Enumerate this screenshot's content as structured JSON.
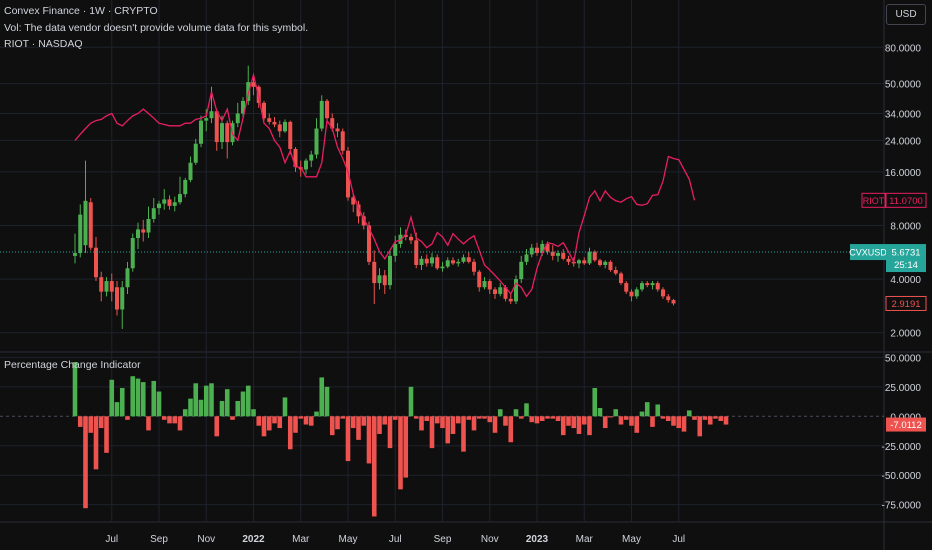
{
  "header": {
    "symbol_line": "Convex Finance · 1W · CRYPTO",
    "volume_note": "Vol: The data vendor doesn't provide volume data for this symbol.",
    "compare_line": "RIOT · NASDAQ",
    "currency_button": "USD"
  },
  "indicator": {
    "title": "Percentage Change Indicator"
  },
  "colors": {
    "up": "#4caf50",
    "down": "#ef5350",
    "compare_line": "#e91e63",
    "bg": "#0f0f0f",
    "grid": "#1e222d",
    "text": "#d1d4dc"
  },
  "chart_data": [
    {
      "type": "candlestick",
      "title": "Convex Finance · 1W · CRYPTO",
      "y_scale": "log",
      "ylim": [
        1.6,
        100
      ],
      "y_ticks": [
        2,
        4,
        8,
        16,
        24,
        34,
        50,
        80
      ],
      "y_tick_labels": [
        "2.0000",
        "4.0000",
        "8.0000",
        "16.0000",
        "24.0000",
        "34.0000",
        "50.0000",
        "80.0000"
      ],
      "x_tick_labels": [
        "Jul",
        "Sep",
        "Nov",
        "2022",
        "Mar",
        "May",
        "Jul",
        "Sep",
        "Nov",
        "2023",
        "Mar",
        "May",
        "Jul"
      ],
      "x_tick_index": [
        7,
        16,
        25,
        34,
        43,
        52,
        61,
        70,
        79,
        88,
        97,
        106,
        115
      ],
      "candles": [
        {
          "o": 5.4,
          "h": 7.2,
          "l": 4.9,
          "c": 5.6
        },
        {
          "o": 5.6,
          "h": 10.5,
          "l": 5.3,
          "c": 9.2
        },
        {
          "o": 6.2,
          "h": 18.5,
          "l": 5.6,
          "c": 11.0
        },
        {
          "o": 10.8,
          "h": 11.4,
          "l": 5.8,
          "c": 6.0
        },
        {
          "o": 6.0,
          "h": 6.9,
          "l": 3.9,
          "c": 4.1
        },
        {
          "o": 4.1,
          "h": 4.4,
          "l": 3.0,
          "c": 3.4
        },
        {
          "o": 3.4,
          "h": 4.1,
          "l": 3.2,
          "c": 3.9
        },
        {
          "o": 3.9,
          "h": 4.3,
          "l": 3.0,
          "c": 3.4
        },
        {
          "o": 3.6,
          "h": 3.9,
          "l": 2.5,
          "c": 2.7
        },
        {
          "o": 2.7,
          "h": 3.9,
          "l": 2.1,
          "c": 3.6
        },
        {
          "o": 3.6,
          "h": 5.0,
          "l": 3.3,
          "c": 4.6
        },
        {
          "o": 4.6,
          "h": 7.2,
          "l": 4.4,
          "c": 6.8
        },
        {
          "o": 6.8,
          "h": 8.3,
          "l": 5.9,
          "c": 7.6
        },
        {
          "o": 7.6,
          "h": 8.6,
          "l": 6.5,
          "c": 7.3
        },
        {
          "o": 7.3,
          "h": 10.2,
          "l": 6.8,
          "c": 8.7
        },
        {
          "o": 8.7,
          "h": 11.4,
          "l": 8.3,
          "c": 10.0
        },
        {
          "o": 10.0,
          "h": 11.0,
          "l": 9.2,
          "c": 10.6
        },
        {
          "o": 10.6,
          "h": 12.8,
          "l": 9.8,
          "c": 11.2
        },
        {
          "o": 11.2,
          "h": 11.8,
          "l": 9.8,
          "c": 10.3
        },
        {
          "o": 10.3,
          "h": 11.6,
          "l": 9.6,
          "c": 10.8
        },
        {
          "o": 10.8,
          "h": 15.0,
          "l": 10.5,
          "c": 12.0
        },
        {
          "o": 12.0,
          "h": 14.8,
          "l": 11.5,
          "c": 14.4
        },
        {
          "o": 14.4,
          "h": 19.5,
          "l": 14.0,
          "c": 18.0
        },
        {
          "o": 18.0,
          "h": 24.5,
          "l": 17.5,
          "c": 23.0
        },
        {
          "o": 23.0,
          "h": 33.0,
          "l": 22.0,
          "c": 31.0
        },
        {
          "o": 31.0,
          "h": 36.0,
          "l": 27.0,
          "c": 32.0
        },
        {
          "o": 32.0,
          "h": 48.0,
          "l": 30.0,
          "c": 35.0
        },
        {
          "o": 35.0,
          "h": 36.0,
          "l": 21.0,
          "c": 23.5
        },
        {
          "o": 23.5,
          "h": 33.0,
          "l": 21.5,
          "c": 30.0
        },
        {
          "o": 30.0,
          "h": 31.0,
          "l": 19.0,
          "c": 23.5
        },
        {
          "o": 23.5,
          "h": 31.0,
          "l": 22.5,
          "c": 30.0
        },
        {
          "o": 30.0,
          "h": 39.0,
          "l": 28.5,
          "c": 34.0
        },
        {
          "o": 34.0,
          "h": 42.0,
          "l": 32.0,
          "c": 40.0
        },
        {
          "o": 40.0,
          "h": 63.0,
          "l": 38.0,
          "c": 51.0
        },
        {
          "o": 51.0,
          "h": 56.0,
          "l": 43.0,
          "c": 48.0
        },
        {
          "o": 48.0,
          "h": 49.0,
          "l": 36.5,
          "c": 39.0
        },
        {
          "o": 39.0,
          "h": 40.0,
          "l": 31.0,
          "c": 32.0
        },
        {
          "o": 32.0,
          "h": 34.0,
          "l": 29.5,
          "c": 30.5
        },
        {
          "o": 30.5,
          "h": 32.5,
          "l": 28.5,
          "c": 29.5
        },
        {
          "o": 29.5,
          "h": 31.0,
          "l": 25.0,
          "c": 27.0
        },
        {
          "o": 27.0,
          "h": 31.5,
          "l": 26.5,
          "c": 30.5
        },
        {
          "o": 30.5,
          "h": 31.0,
          "l": 20.0,
          "c": 21.5
        },
        {
          "o": 21.5,
          "h": 22.0,
          "l": 16.0,
          "c": 17.0
        },
        {
          "o": 17.0,
          "h": 18.5,
          "l": 15.0,
          "c": 16.5
        },
        {
          "o": 16.5,
          "h": 19.0,
          "l": 15.5,
          "c": 18.5
        },
        {
          "o": 18.5,
          "h": 21.0,
          "l": 17.0,
          "c": 20.0
        },
        {
          "o": 20.0,
          "h": 32.0,
          "l": 19.0,
          "c": 28.0
        },
        {
          "o": 28.0,
          "h": 43.0,
          "l": 27.0,
          "c": 40.0
        },
        {
          "o": 40.0,
          "h": 41.0,
          "l": 30.0,
          "c": 32.0
        },
        {
          "o": 32.0,
          "h": 34.0,
          "l": 27.0,
          "c": 28.0
        },
        {
          "o": 28.0,
          "h": 30.0,
          "l": 25.0,
          "c": 27.0
        },
        {
          "o": 27.0,
          "h": 28.0,
          "l": 20.0,
          "c": 21.0
        },
        {
          "o": 21.0,
          "h": 22.0,
          "l": 11.0,
          "c": 11.5
        },
        {
          "o": 11.5,
          "h": 12.0,
          "l": 9.5,
          "c": 10.5
        },
        {
          "o": 10.5,
          "h": 11.0,
          "l": 8.2,
          "c": 9.0
        },
        {
          "o": 9.0,
          "h": 9.5,
          "l": 7.6,
          "c": 8.0
        },
        {
          "o": 8.0,
          "h": 8.4,
          "l": 4.8,
          "c": 5.0
        },
        {
          "o": 5.0,
          "h": 5.8,
          "l": 2.9,
          "c": 3.8
        },
        {
          "o": 3.8,
          "h": 4.6,
          "l": 3.5,
          "c": 4.2
        },
        {
          "o": 4.2,
          "h": 4.5,
          "l": 3.3,
          "c": 3.7
        },
        {
          "o": 3.7,
          "h": 5.8,
          "l": 3.5,
          "c": 5.4
        },
        {
          "o": 5.4,
          "h": 7.0,
          "l": 5.0,
          "c": 6.3
        },
        {
          "o": 6.3,
          "h": 7.8,
          "l": 6.0,
          "c": 7.1
        },
        {
          "o": 7.1,
          "h": 7.6,
          "l": 6.6,
          "c": 6.9
        },
        {
          "o": 6.9,
          "h": 7.2,
          "l": 6.3,
          "c": 6.6
        },
        {
          "o": 6.6,
          "h": 7.3,
          "l": 4.6,
          "c": 4.8
        },
        {
          "o": 4.8,
          "h": 5.4,
          "l": 4.5,
          "c": 5.2
        },
        {
          "o": 5.2,
          "h": 5.5,
          "l": 4.7,
          "c": 4.9
        },
        {
          "o": 4.9,
          "h": 5.6,
          "l": 4.7,
          "c": 5.3
        },
        {
          "o": 5.3,
          "h": 5.5,
          "l": 4.5,
          "c": 4.6
        },
        {
          "o": 4.6,
          "h": 5.0,
          "l": 4.4,
          "c": 4.7
        },
        {
          "o": 4.7,
          "h": 5.3,
          "l": 4.6,
          "c": 5.1
        },
        {
          "o": 5.1,
          "h": 5.3,
          "l": 4.8,
          "c": 4.9
        },
        {
          "o": 4.9,
          "h": 5.2,
          "l": 4.7,
          "c": 5.0
        },
        {
          "o": 5.0,
          "h": 5.5,
          "l": 4.9,
          "c": 5.3
        },
        {
          "o": 5.3,
          "h": 5.7,
          "l": 4.9,
          "c": 5.0
        },
        {
          "o": 5.0,
          "h": 5.2,
          "l": 4.2,
          "c": 4.4
        },
        {
          "o": 4.4,
          "h": 4.5,
          "l": 3.4,
          "c": 3.6
        },
        {
          "o": 3.6,
          "h": 4.1,
          "l": 3.5,
          "c": 3.9
        },
        {
          "o": 3.9,
          "h": 4.0,
          "l": 3.3,
          "c": 3.5
        },
        {
          "o": 3.5,
          "h": 3.6,
          "l": 3.1,
          "c": 3.3
        },
        {
          "o": 3.3,
          "h": 3.8,
          "l": 3.2,
          "c": 3.6
        },
        {
          "o": 3.6,
          "h": 3.7,
          "l": 3.0,
          "c": 3.1
        },
        {
          "o": 3.1,
          "h": 3.3,
          "l": 2.9,
          "c": 3.0
        },
        {
          "o": 3.0,
          "h": 4.2,
          "l": 2.9,
          "c": 4.0
        },
        {
          "o": 4.0,
          "h": 5.4,
          "l": 3.8,
          "c": 5.0
        },
        {
          "o": 5.0,
          "h": 5.9,
          "l": 4.8,
          "c": 5.5
        },
        {
          "o": 5.5,
          "h": 6.3,
          "l": 5.3,
          "c": 6.0
        },
        {
          "o": 6.0,
          "h": 6.4,
          "l": 5.4,
          "c": 5.6
        },
        {
          "o": 5.6,
          "h": 6.6,
          "l": 5.4,
          "c": 6.3
        },
        {
          "o": 6.3,
          "h": 6.5,
          "l": 5.5,
          "c": 5.7
        },
        {
          "o": 5.7,
          "h": 6.2,
          "l": 5.1,
          "c": 5.4
        },
        {
          "o": 5.4,
          "h": 5.8,
          "l": 5.0,
          "c": 5.6
        },
        {
          "o": 5.6,
          "h": 5.9,
          "l": 5.1,
          "c": 5.2
        },
        {
          "o": 5.2,
          "h": 5.4,
          "l": 4.8,
          "c": 5.0
        },
        {
          "o": 5.0,
          "h": 5.3,
          "l": 4.7,
          "c": 4.9
        },
        {
          "o": 4.9,
          "h": 5.2,
          "l": 4.6,
          "c": 5.1
        },
        {
          "o": 5.1,
          "h": 5.3,
          "l": 4.8,
          "c": 4.9
        },
        {
          "o": 4.9,
          "h": 6.0,
          "l": 4.8,
          "c": 5.7
        },
        {
          "o": 5.7,
          "h": 5.8,
          "l": 5.0,
          "c": 5.1
        },
        {
          "o": 5.1,
          "h": 5.2,
          "l": 4.7,
          "c": 4.8
        },
        {
          "o": 4.8,
          "h": 5.1,
          "l": 4.6,
          "c": 5.0
        },
        {
          "o": 5.0,
          "h": 5.1,
          "l": 4.4,
          "c": 4.5
        },
        {
          "o": 4.5,
          "h": 4.7,
          "l": 4.2,
          "c": 4.3
        },
        {
          "o": 4.3,
          "h": 4.4,
          "l": 3.7,
          "c": 3.8
        },
        {
          "o": 3.8,
          "h": 3.9,
          "l": 3.3,
          "c": 3.4
        },
        {
          "o": 3.4,
          "h": 3.5,
          "l": 3.0,
          "c": 3.2
        },
        {
          "o": 3.2,
          "h": 3.6,
          "l": 3.1,
          "c": 3.5
        },
        {
          "o": 3.5,
          "h": 3.9,
          "l": 3.4,
          "c": 3.8
        },
        {
          "o": 3.8,
          "h": 3.9,
          "l": 3.6,
          "c": 3.7
        },
        {
          "o": 3.7,
          "h": 3.9,
          "l": 3.5,
          "c": 3.8
        },
        {
          "o": 3.8,
          "h": 3.9,
          "l": 3.4,
          "c": 3.5
        },
        {
          "o": 3.5,
          "h": 3.6,
          "l": 3.1,
          "c": 3.2
        },
        {
          "o": 3.2,
          "h": 3.3,
          "l": 2.95,
          "c": 3.05
        },
        {
          "o": 3.05,
          "h": 3.1,
          "l": 2.85,
          "c": 2.9191
        }
      ],
      "compare_series": {
        "name": "RIOT",
        "values": [
          24,
          26,
          28,
          30,
          31,
          31.5,
          33,
          34,
          30,
          29,
          31,
          33,
          34,
          36,
          34,
          32,
          30,
          29.5,
          29,
          29,
          29,
          30,
          30,
          31.5,
          32,
          33,
          45,
          35,
          31,
          36,
          26,
          24,
          32,
          44,
          56,
          42,
          30,
          28,
          24,
          22,
          18,
          21,
          17,
          17,
          15,
          15,
          15,
          18,
          31,
          28,
          22,
          19,
          16,
          12,
          10,
          8.7,
          7.7,
          6.7,
          5.7,
          5.2,
          5.8,
          6.5,
          6.6,
          7.1,
          8.9,
          6.8,
          6.5,
          6.0,
          6.3,
          7.3,
          6.9,
          6.2,
          7.2,
          6.7,
          6.3,
          6.7,
          7.0,
          5.8,
          4.8,
          4.5,
          4.2,
          3.9,
          3.6,
          3.3,
          3.8,
          3.6,
          3.2,
          3.5,
          4.6,
          5.6,
          6.4,
          6.3,
          6.1,
          6.4,
          5.7,
          5.0,
          7.3,
          9.1,
          11.5,
          12.5,
          11.0,
          12.5,
          11.5,
          11.0,
          10.8,
          11.3,
          11.6,
          10.5,
          10.4,
          10.6,
          11.8,
          11.9,
          14.2,
          19.5,
          19.0,
          18.7,
          16.5,
          14.5,
          11.07
        ],
        "last_label": "11.0700"
      },
      "last_price": 5.6731,
      "last_price_label": "5.6731",
      "countdown_label": "25:14",
      "symbol_tag": "CVXUSD",
      "last_close_label": "2.9191",
      "grid": true
    },
    {
      "type": "bar",
      "title": "Percentage Change Indicator",
      "ylim": [
        -88,
        52
      ],
      "y_ticks": [
        50,
        25,
        0,
        -25,
        -50,
        -75
      ],
      "y_tick_labels": [
        "50.0000",
        "25.0000",
        "0.0000",
        "-25.0000",
        "-50.0000",
        "-75.0000"
      ],
      "values": [
        46,
        -9,
        -78,
        -14,
        -45,
        -10,
        -31,
        31,
        12,
        24,
        -3,
        34,
        32,
        29,
        -12,
        30,
        21,
        -3,
        -6,
        -6,
        -12,
        6,
        15,
        28,
        14,
        26,
        28,
        -17,
        13,
        23,
        -3,
        13,
        21,
        26,
        6,
        -8,
        -17,
        -12,
        -6,
        -10,
        16,
        -28,
        -14,
        -2,
        -7,
        -8,
        4,
        33,
        25,
        -16,
        -11,
        -2,
        -38,
        -10,
        -20,
        -8,
        -40,
        -85,
        -15,
        -7,
        -27,
        -3,
        -62,
        -52,
        25,
        -2,
        -12,
        -4,
        -27,
        -6,
        -10,
        -23,
        -15,
        -6,
        -30,
        -3,
        -12,
        -2,
        -2,
        -5,
        -14,
        6,
        -8,
        -22,
        6,
        -2,
        11,
        -5,
        -6,
        -4,
        -2,
        -2,
        -4,
        -16,
        -8,
        -10,
        -15,
        -7,
        -16,
        24,
        7,
        -10,
        -1,
        6,
        -7,
        -3,
        -8,
        -14,
        4,
        12,
        -9,
        10,
        -2,
        -4,
        -8,
        -10,
        -13,
        5,
        -3,
        -17,
        -3,
        -7,
        -2,
        -4,
        -7.0112
      ],
      "last_value_label": "-7.0112",
      "grid": true
    }
  ]
}
